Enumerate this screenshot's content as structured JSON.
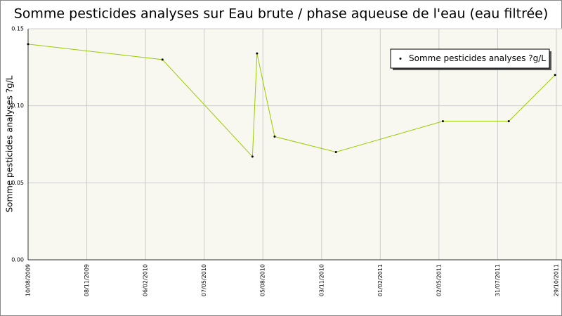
{
  "chart_data": {
    "type": "line",
    "title": "Somme pesticides analyses sur Eau brute / phase aqueuse de l'eau (eau filtrée)",
    "ylabel": "Somme pesticides analyses ?g/L",
    "x": [
      "10/08/2009",
      "04/03/2010",
      "20/07/2010",
      "27/07/2010",
      "23/08/2010",
      "25/11/2010",
      "08/05/2011",
      "17/08/2011",
      "27/10/2011"
    ],
    "series": [
      {
        "name": "Somme pesticides analyses ?g/L",
        "color": "#99cc00",
        "values": [
          0.14,
          0.13,
          0.067,
          0.134,
          0.08,
          0.07,
          0.09,
          0.09,
          0.12
        ]
      }
    ],
    "xlim": [
      "10/08/2009",
      "29/10/2011"
    ],
    "xticks": [
      "10/08/2009",
      "08/11/2009",
      "06/02/2010",
      "07/05/2010",
      "05/08/2010",
      "03/11/2010",
      "01/02/2011",
      "02/05/2011",
      "31/07/2011",
      "29/10/2011"
    ],
    "ylim": [
      0,
      0.15
    ],
    "yticks": [
      {
        "value": 0,
        "label": "0.00"
      },
      0.05,
      {
        "value": 0.1,
        "label": "0.10"
      },
      0.15
    ],
    "grid": true,
    "legend": "upper right"
  }
}
